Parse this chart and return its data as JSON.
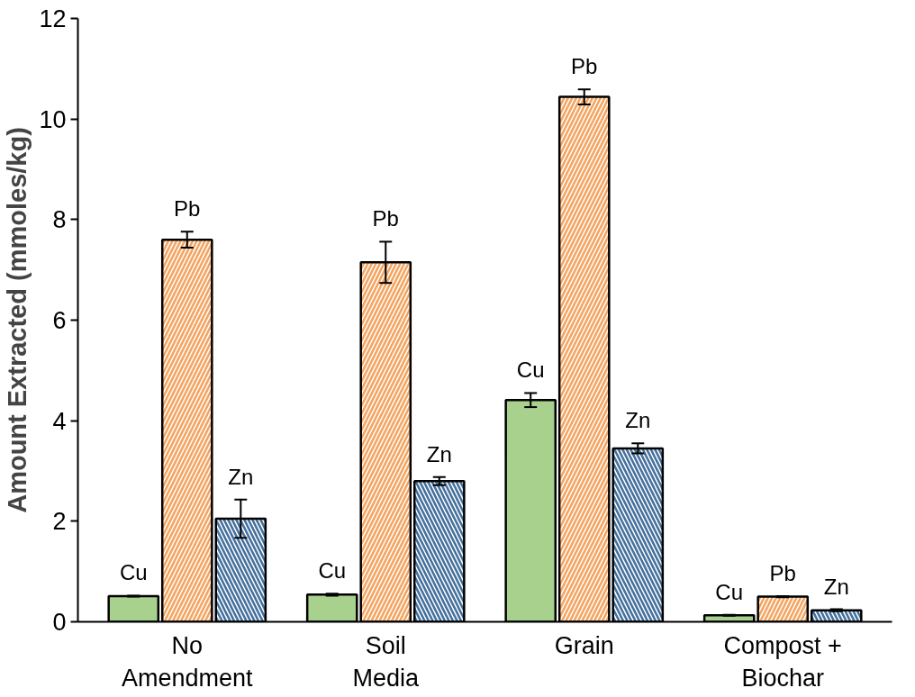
{
  "chart_data": {
    "type": "bar",
    "ylabel": "Amount Extracted (mmoles/kg)",
    "categories": [
      "No Amendment",
      "Soil Media",
      "Grain",
      "Compost + Biochar"
    ],
    "series": [
      {
        "name": "Cu",
        "color": "#a9d18e",
        "values": [
          0.51,
          0.54,
          4.41,
          0.13
        ],
        "errors": [
          0.01,
          0.02,
          0.14,
          0.01
        ]
      },
      {
        "name": "Pb",
        "color": "#f4a460",
        "values": [
          7.6,
          7.15,
          10.44,
          0.5
        ],
        "errors": [
          0.16,
          0.41,
          0.15,
          0.01
        ]
      },
      {
        "name": "Zn",
        "color": "#44709c",
        "values": [
          2.05,
          2.8,
          3.45,
          0.23
        ],
        "errors": [
          0.38,
          0.08,
          0.1,
          0.02
        ]
      }
    ],
    "ylim": [
      0,
      12
    ],
    "yticks": [
      0,
      2,
      4,
      6,
      8,
      10,
      12
    ],
    "grid": false
  }
}
